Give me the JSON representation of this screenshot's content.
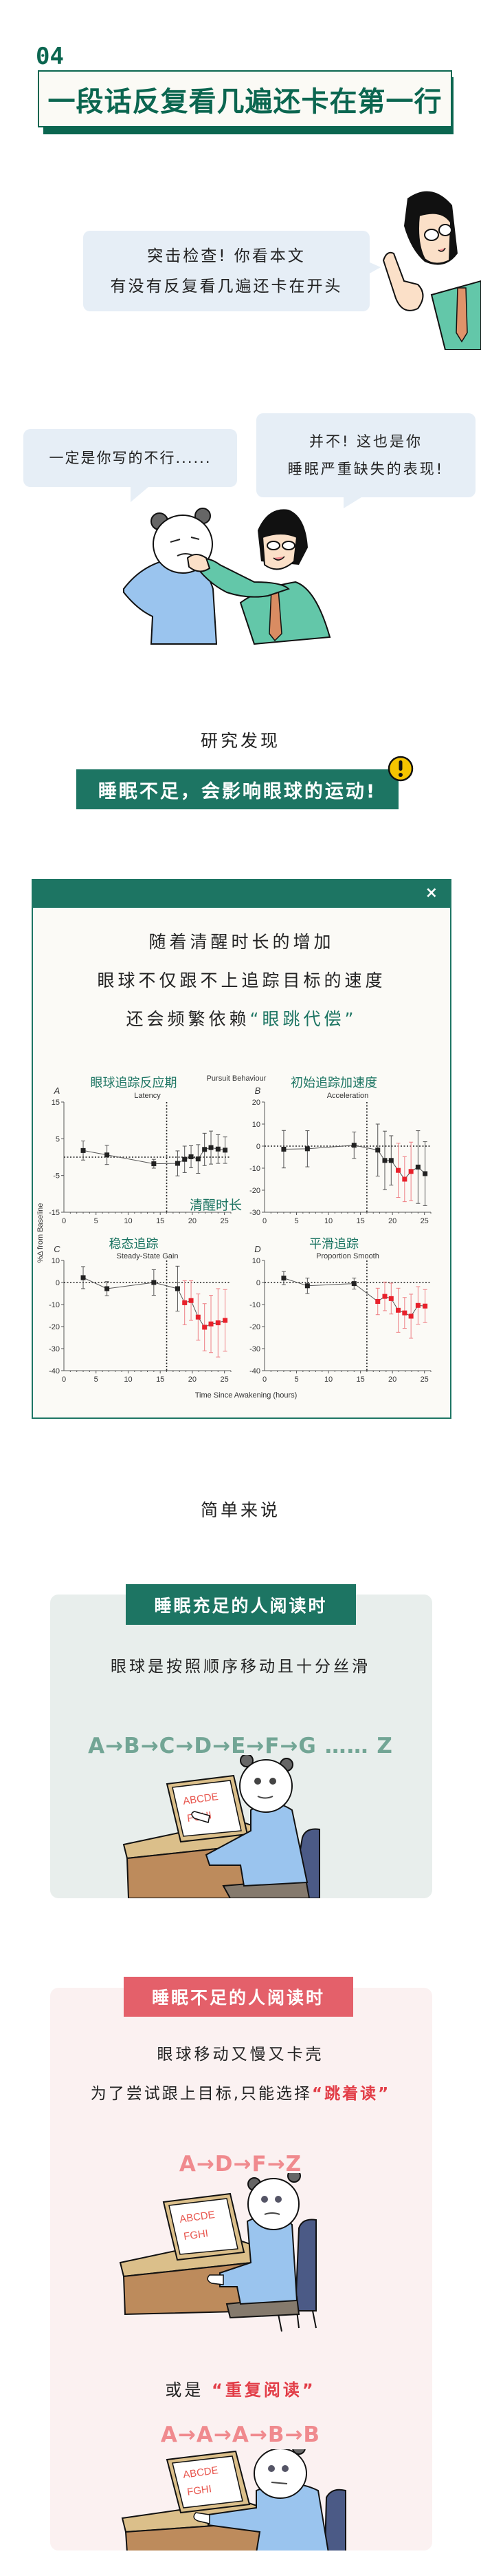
{
  "section": {
    "number": "04",
    "title": "一段话反复看几遍还卡在第一行"
  },
  "dialog1": {
    "lines": [
      "突击检查! 你看本文",
      "有没有反复看几遍还卡在开头"
    ]
  },
  "dialog2": {
    "left": "一定是你写的不行......",
    "right_lines": [
      "并不! 这也是你",
      "睡眠严重缺失的表现!"
    ]
  },
  "research": {
    "label": "研究发现",
    "banner": "睡眠不足，会影响眼球的运动!",
    "alert_icon": "exclamation-icon",
    "alert_color": "#f5c400"
  },
  "figure_card": {
    "close_label": "×",
    "lines": [
      "随着清醒时长的增加",
      "眼球不仅跟不上追踪目标的速度"
    ],
    "line3_prefix": "还会频繁依赖",
    "line3_highlight": "“眼跳代偿”"
  },
  "chart_data": {
    "type": "scatter",
    "title": "Pursuit Behaviour",
    "xlabel": "Time Since Awakening (hours)",
    "ylabel": "%Δ from Baseline",
    "annotation": "清醒时长",
    "xlim": [
      0,
      26
    ],
    "xticks": [
      0,
      5,
      10,
      15,
      20,
      25
    ],
    "reference_lines": {
      "x": 16,
      "y": 0
    },
    "colors": {
      "normal": "#222222",
      "significant": "#e8212b"
    },
    "panels": [
      {
        "letter": "A",
        "title_cn": "眼球追踪反应期",
        "title_en": "Latency",
        "ylim": [
          -15,
          15
        ],
        "yticks": [
          15,
          5,
          -5,
          -15
        ],
        "x": [
          3,
          6.7,
          14,
          17.7,
          18.8,
          19.8,
          20.9,
          21.9,
          22.9,
          24,
          25.1
        ],
        "y": [
          1.8,
          0.6,
          -1.8,
          -1.7,
          -0.6,
          0.1,
          -0.5,
          2.1,
          2.6,
          2.2,
          1.9
        ],
        "err": [
          2.6,
          2.6,
          1.2,
          3.4,
          3.6,
          3.0,
          3.9,
          4.4,
          4.5,
          3.9,
          3.6
        ],
        "significant": [
          false,
          false,
          false,
          false,
          false,
          false,
          false,
          false,
          false,
          false,
          false
        ]
      },
      {
        "letter": "B",
        "title_cn": "初始追踪加速度",
        "title_en": "Acceleration",
        "ylim": [
          -30,
          20
        ],
        "yticks": [
          20,
          10,
          0,
          -10,
          -20,
          -30
        ],
        "x": [
          3,
          6.7,
          14,
          17.7,
          18.8,
          19.8,
          20.9,
          21.9,
          22.9,
          24,
          25.1
        ],
        "y": [
          -1.4,
          -1.2,
          0.4,
          -1.8,
          -6.5,
          -6.5,
          -11,
          -15,
          -11.5,
          -9.5,
          -12.5
        ],
        "err": [
          8.5,
          8.2,
          6,
          11.8,
          13.3,
          11.2,
          12.3,
          10.2,
          13.3,
          16.5,
          14.5
        ],
        "significant": [
          false,
          false,
          false,
          false,
          false,
          false,
          true,
          true,
          true,
          false,
          false
        ]
      },
      {
        "letter": "C",
        "title_cn": "稳态追踪",
        "title_en": "Steady-State Gain",
        "ylim": [
          -40,
          10
        ],
        "yticks": [
          10,
          0,
          -10,
          -20,
          -30,
          -40
        ],
        "x": [
          3,
          6.7,
          14,
          17.7,
          18.8,
          19.8,
          20.9,
          21.9,
          22.9,
          24,
          25.1
        ],
        "y": [
          2.2,
          -2.8,
          0,
          -2.8,
          -9.2,
          -8.2,
          -15.7,
          -20.3,
          -18.8,
          -18.3,
          -17.2
        ],
        "err": [
          5,
          3.2,
          5.8,
          10.2,
          10,
          9,
          10.5,
          10.7,
          13,
          15.5,
          14
        ],
        "significant": [
          false,
          false,
          false,
          false,
          true,
          true,
          true,
          true,
          true,
          true,
          true
        ]
      },
      {
        "letter": "D",
        "title_cn": "平滑追踪",
        "title_en": "Proportion Smooth",
        "ylim": [
          -40,
          10
        ],
        "yticks": [
          10,
          0,
          -10,
          -20,
          -30,
          -40
        ],
        "x": [
          3,
          6.7,
          14,
          17.7,
          18.8,
          19.8,
          20.9,
          21.9,
          22.9,
          24,
          25.1
        ],
        "y": [
          2,
          -1.5,
          -0.5,
          -8.6,
          -6.3,
          -7.3,
          -12.6,
          -13.8,
          -15.3,
          -10.4,
          -10.7
        ],
        "err": [
          3,
          3.5,
          2.5,
          6,
          6.5,
          7,
          10,
          7,
          10,
          8.5,
          7.5
        ],
        "significant": [
          false,
          false,
          false,
          true,
          true,
          true,
          true,
          true,
          true,
          true,
          true
        ]
      }
    ]
  },
  "simple": {
    "label": "简单来说"
  },
  "good_sleep": {
    "banner": "睡眠充足的人阅读时",
    "text": "眼球是按照顺序移动且十分丝滑",
    "sequence": "A→B→C→D→E→F→G …… Z",
    "card_color": "#e8eeec",
    "sequence_color": "#72a595"
  },
  "poor_sleep": {
    "banner": "睡眠不足的人阅读时",
    "line1": "眼球移动又慢又卡壳",
    "line2_prefix": "为了尝试跟上目标,只能选择",
    "line2_highlight": "“跳着读”",
    "sequence1": "A→D→F→Z",
    "line3_prefix": "或是",
    "line3_highlight": "“重复阅读”",
    "sequence2": "A→A→A→B→B",
    "card_color": "#fbf1f1",
    "banner_color": "#e4606a",
    "sequence_color": "#f08a8e"
  },
  "screen_text": {
    "row1": "ABCDE",
    "row2": "FGHI"
  }
}
